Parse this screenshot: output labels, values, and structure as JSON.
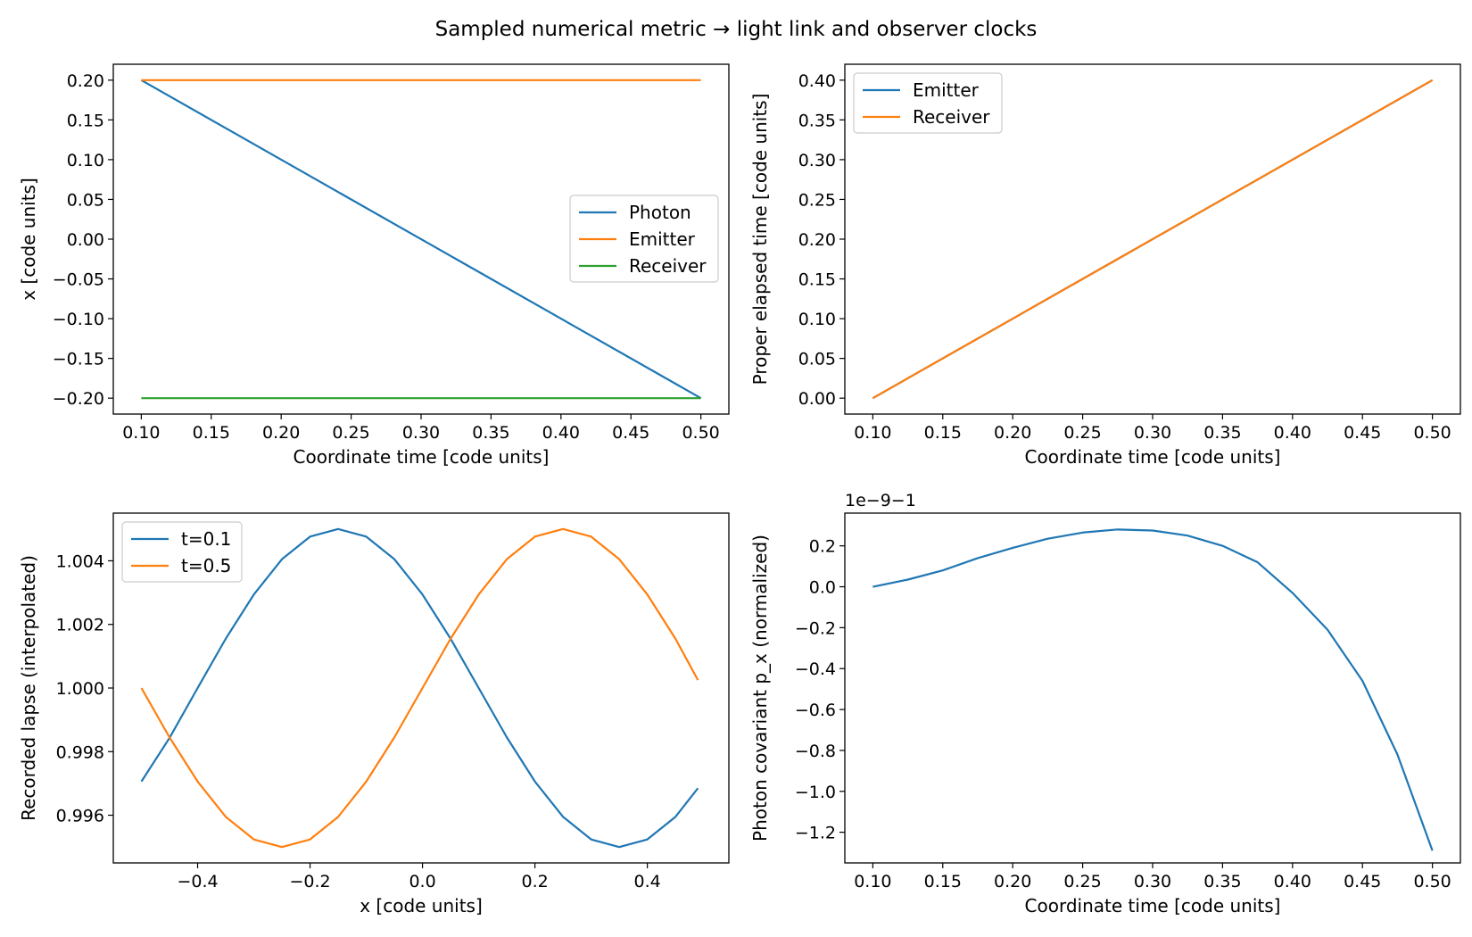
{
  "figure_title": "Sampled numerical metric → light link and observer clocks",
  "chart_data": [
    {
      "type": "line",
      "xlabel": "Coordinate time [code units]",
      "ylabel": "x [code units]",
      "xlim": [
        0.08,
        0.52
      ],
      "ylim": [
        -0.22,
        0.22
      ],
      "xticks": [
        0.1,
        0.15,
        0.2,
        0.25,
        0.3,
        0.35,
        0.4,
        0.45,
        0.5
      ],
      "xtick_labels": [
        "0.10",
        "0.15",
        "0.20",
        "0.25",
        "0.30",
        "0.35",
        "0.40",
        "0.45",
        "0.50"
      ],
      "yticks": [
        0.2,
        0.15,
        0.1,
        0.05,
        0.0,
        -0.05,
        -0.1,
        -0.15,
        -0.2
      ],
      "ytick_labels": [
        "0.20",
        "0.15",
        "0.10",
        "0.05",
        "0.00",
        "−0.05",
        "−0.10",
        "−0.15",
        "−0.20"
      ],
      "legend_position": "center-right",
      "series": [
        {
          "name": "Photon",
          "color": "#1f77b4",
          "x": [
            0.1,
            0.5
          ],
          "y": [
            0.2,
            -0.2
          ]
        },
        {
          "name": "Emitter",
          "color": "#ff7f0e",
          "x": [
            0.1,
            0.5
          ],
          "y": [
            0.2,
            0.2
          ]
        },
        {
          "name": "Receiver",
          "color": "#2ca02c",
          "x": [
            0.1,
            0.5
          ],
          "y": [
            -0.2,
            -0.2
          ]
        }
      ]
    },
    {
      "type": "line",
      "xlabel": "Coordinate time [code units]",
      "ylabel": "Proper elapsed time [code units]",
      "xlim": [
        0.08,
        0.52
      ],
      "ylim": [
        -0.02,
        0.42
      ],
      "xticks": [
        0.1,
        0.15,
        0.2,
        0.25,
        0.3,
        0.35,
        0.4,
        0.45,
        0.5
      ],
      "xtick_labels": [
        "0.10",
        "0.15",
        "0.20",
        "0.25",
        "0.30",
        "0.35",
        "0.40",
        "0.45",
        "0.50"
      ],
      "yticks": [
        0.4,
        0.35,
        0.3,
        0.25,
        0.2,
        0.15,
        0.1,
        0.05,
        0.0
      ],
      "ytick_labels": [
        "0.40",
        "0.35",
        "0.30",
        "0.25",
        "0.20",
        "0.15",
        "0.10",
        "0.05",
        "0.00"
      ],
      "legend_position": "upper-left",
      "series": [
        {
          "name": "Emitter",
          "color": "#1f77b4",
          "x": [
            0.1,
            0.5
          ],
          "y": [
            0.0,
            0.4
          ]
        },
        {
          "name": "Receiver",
          "color": "#ff7f0e",
          "x": [
            0.1,
            0.5
          ],
          "y": [
            0.0,
            0.4
          ]
        }
      ]
    },
    {
      "type": "line",
      "xlabel": "x [code units]",
      "ylabel": "Recorded lapse (interpolated)",
      "xlim": [
        -0.55,
        0.545
      ],
      "ylim": [
        0.9945,
        1.0055
      ],
      "xticks": [
        -0.4,
        -0.2,
        0.0,
        0.2,
        0.4
      ],
      "xtick_labels": [
        "−0.4",
        "−0.2",
        "0.0",
        "0.2",
        "0.4"
      ],
      "yticks": [
        1.004,
        1.002,
        1.0,
        0.998,
        0.996
      ],
      "ytick_labels": [
        "1.004",
        "1.002",
        "1.000",
        "0.998",
        "0.996"
      ],
      "legend_position": "upper-left",
      "series": [
        {
          "name": "t=0.1",
          "color": "#1f77b4",
          "x": [
            -0.5,
            -0.45,
            -0.4,
            -0.35,
            -0.3,
            -0.25,
            -0.2,
            -0.15,
            -0.1,
            -0.05,
            0.0,
            0.05,
            0.1,
            0.15,
            0.2,
            0.25,
            0.3,
            0.35,
            0.4,
            0.45,
            0.49
          ],
          "y": [
            0.99706,
            0.99843,
            1.0,
            1.00155,
            1.00294,
            1.00405,
            1.00476,
            1.005,
            1.00476,
            1.00405,
            1.00294,
            1.00155,
            1.0,
            0.99845,
            0.99706,
            0.99595,
            0.99524,
            0.995,
            0.99524,
            0.99595,
            0.99685
          ]
        },
        {
          "name": "t=0.5",
          "color": "#ff7f0e",
          "x": [
            -0.5,
            -0.45,
            -0.4,
            -0.35,
            -0.3,
            -0.25,
            -0.2,
            -0.15,
            -0.1,
            -0.05,
            0.0,
            0.05,
            0.1,
            0.15,
            0.2,
            0.25,
            0.3,
            0.35,
            0.4,
            0.45,
            0.49
          ],
          "y": [
            1.0,
            0.99845,
            0.99706,
            0.99595,
            0.99524,
            0.995,
            0.99524,
            0.99595,
            0.99706,
            0.99845,
            1.0,
            1.00155,
            1.00294,
            1.00405,
            1.00476,
            1.005,
            1.00476,
            1.00405,
            1.00294,
            1.00155,
            1.00025
          ]
        }
      ]
    },
    {
      "type": "line",
      "xlabel": "Coordinate time [code units]",
      "ylabel": "Photon covariant p_x (normalized)",
      "offset_text": "1e−9−1",
      "xlim": [
        0.08,
        0.52
      ],
      "ylim": [
        -1.35,
        0.36
      ],
      "xticks": [
        0.1,
        0.15,
        0.2,
        0.25,
        0.3,
        0.35,
        0.4,
        0.45,
        0.5
      ],
      "xtick_labels": [
        "0.10",
        "0.15",
        "0.20",
        "0.25",
        "0.30",
        "0.35",
        "0.40",
        "0.45",
        "0.50"
      ],
      "yticks": [
        0.2,
        0.0,
        -0.2,
        -0.4,
        -0.6,
        -0.8,
        -1.0,
        -1.2
      ],
      "ytick_labels": [
        "0.2",
        "0.0",
        "−0.2",
        "−0.4",
        "−0.6",
        "−0.8",
        "−1.0",
        "−1.2"
      ],
      "series": [
        {
          "name": "",
          "color": "#1f77b4",
          "x": [
            0.1,
            0.125,
            0.15,
            0.175,
            0.2,
            0.225,
            0.25,
            0.275,
            0.3,
            0.325,
            0.35,
            0.375,
            0.4,
            0.425,
            0.45,
            0.475,
            0.5
          ],
          "y": [
            0.0,
            0.035,
            0.08,
            0.14,
            0.19,
            0.235,
            0.265,
            0.28,
            0.275,
            0.25,
            0.2,
            0.12,
            -0.03,
            -0.21,
            -0.46,
            -0.82,
            -1.29
          ]
        }
      ]
    }
  ]
}
